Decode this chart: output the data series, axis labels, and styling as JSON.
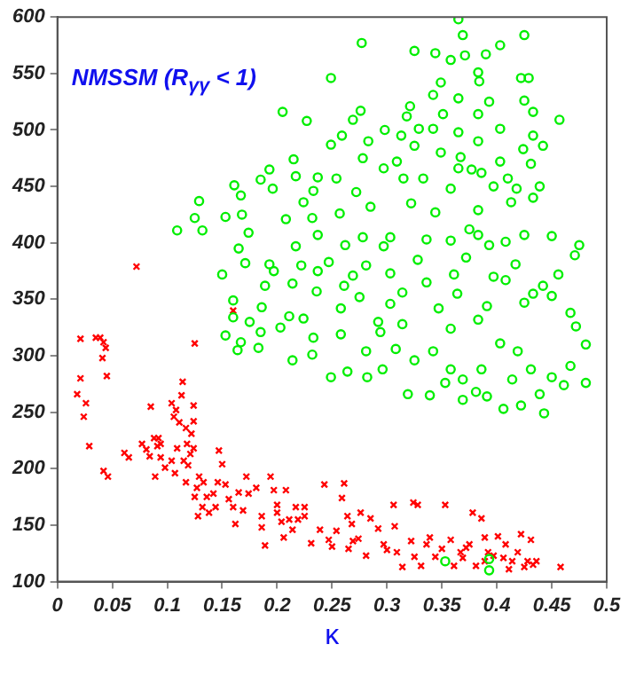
{
  "chart_data": {
    "type": "scatter",
    "title": "NMSSM (R$_{γγ}$ < 1)",
    "xlabel": "κ",
    "xlim": [
      0,
      0.5
    ],
    "xticks": [
      0,
      0.05,
      0.1,
      0.15,
      0.2,
      0.25,
      0.3,
      0.35,
      0.4,
      0.45,
      0.5
    ],
    "ylim": [
      100,
      600
    ],
    "yticks": [
      100,
      150,
      200,
      250,
      300,
      350,
      400,
      450,
      500,
      550,
      600
    ],
    "grid": false,
    "legend": false,
    "series": [
      {
        "color": "#00ee00",
        "marker": "circle",
        "x": [
          0.365,
          0.369,
          0.425,
          0.277,
          0.403,
          0.325,
          0.344,
          0.371,
          0.39,
          0.358,
          0.249,
          0.383,
          0.422,
          0.429,
          0.349,
          0.384,
          0.342,
          0.365,
          0.393,
          0.425,
          0.433,
          0.205,
          0.227,
          0.276,
          0.321,
          0.318,
          0.351,
          0.383,
          0.457,
          0.269,
          0.298,
          0.329,
          0.342,
          0.365,
          0.403,
          0.259,
          0.313,
          0.383,
          0.433,
          0.442,
          0.249,
          0.283,
          0.325,
          0.349,
          0.367,
          0.424,
          0.215,
          0.278,
          0.309,
          0.365,
          0.377,
          0.403,
          0.431,
          0.193,
          0.237,
          0.297,
          0.315,
          0.386,
          0.41,
          0.161,
          0.185,
          0.217,
          0.254,
          0.333,
          0.397,
          0.439,
          0.167,
          0.196,
          0.233,
          0.272,
          0.358,
          0.418,
          0.129,
          0.224,
          0.285,
          0.322,
          0.433,
          0.125,
          0.153,
          0.168,
          0.232,
          0.257,
          0.344,
          0.383,
          0.413,
          0.132,
          0.109,
          0.174,
          0.208,
          0.237,
          0.278,
          0.303,
          0.358,
          0.383,
          0.425,
          0.45,
          0.165,
          0.217,
          0.262,
          0.297,
          0.336,
          0.375,
          0.393,
          0.408,
          0.475,
          0.471,
          0.171,
          0.193,
          0.222,
          0.247,
          0.281,
          0.328,
          0.372,
          0.417,
          0.15,
          0.197,
          0.237,
          0.269,
          0.303,
          0.361,
          0.397,
          0.456,
          0.189,
          0.214,
          0.261,
          0.336,
          0.408,
          0.442,
          0.16,
          0.236,
          0.275,
          0.314,
          0.364,
          0.433,
          0.45,
          0.186,
          0.258,
          0.303,
          0.347,
          0.391,
          0.425,
          0.467,
          0.224,
          0.292,
          0.383,
          0.16,
          0.472,
          0.481,
          0.175,
          0.211,
          0.153,
          0.167,
          0.164,
          0.185,
          0.183,
          0.203,
          0.214,
          0.233,
          0.232,
          0.249,
          0.264,
          0.281,
          0.282,
          0.294,
          0.296,
          0.308,
          0.319,
          0.325,
          0.339,
          0.342,
          0.353,
          0.358,
          0.369,
          0.369,
          0.381,
          0.386,
          0.391,
          0.406,
          0.414,
          0.422,
          0.431,
          0.439,
          0.443,
          0.45,
          0.461,
          0.467,
          0.481,
          0.403,
          0.419,
          0.358,
          0.314,
          0.258,
          0.353,
          0.393,
          0.393
        ],
        "values": [
          598,
          584,
          584,
          577,
          575,
          570,
          568,
          566,
          567,
          562,
          546,
          551,
          546,
          546,
          542,
          543,
          531,
          528,
          525,
          526,
          516,
          516,
          508,
          517,
          521,
          512,
          514,
          514,
          509,
          509,
          500,
          501,
          501,
          498,
          501,
          495,
          495,
          490,
          495,
          486,
          487,
          490,
          486,
          480,
          476,
          483,
          474,
          475,
          472,
          466,
          465,
          472,
          470,
          465,
          458,
          466,
          457,
          462,
          457,
          451,
          456,
          459,
          457,
          457,
          450,
          450,
          442,
          448,
          446,
          445,
          448,
          448,
          437,
          436,
          432,
          435,
          440,
          422,
          423,
          425,
          422,
          426,
          427,
          429,
          436,
          411,
          411,
          409,
          421,
          407,
          405,
          405,
          402,
          407,
          407,
          406,
          395,
          397,
          398,
          397,
          403,
          412,
          398,
          401,
          398,
          389,
          382,
          381,
          380,
          383,
          380,
          385,
          387,
          381,
          372,
          375,
          375,
          371,
          373,
          372,
          370,
          372,
          362,
          364,
          362,
          365,
          367,
          362,
          349,
          357,
          352,
          356,
          355,
          355,
          353,
          343,
          342,
          346,
          342,
          344,
          347,
          338,
          333,
          330,
          332,
          334,
          326,
          310,
          330,
          335,
          318,
          312,
          305,
          321,
          307,
          325,
          296,
          316,
          301,
          281,
          286,
          304,
          281,
          321,
          288,
          306,
          266,
          296,
          265,
          304,
          276,
          288,
          261,
          279,
          268,
          288,
          264,
          253,
          279,
          256,
          288,
          266,
          249,
          281,
          274,
          291,
          276,
          311,
          304,
          324,
          328,
          319,
          118,
          120,
          110
        ]
      },
      {
        "color": "#ff0000",
        "marker": "cross",
        "x": [
          0.018,
          0.021,
          0.021,
          0.024,
          0.026,
          0.029,
          0.035,
          0.039,
          0.042,
          0.041,
          0.044,
          0.045,
          0.042,
          0.046,
          0.125,
          0.072,
          0.16,
          0.061,
          0.065,
          0.077,
          0.081,
          0.084,
          0.085,
          0.088,
          0.089,
          0.092,
          0.091,
          0.094,
          0.094,
          0.098,
          0.104,
          0.106,
          0.108,
          0.104,
          0.107,
          0.109,
          0.111,
          0.113,
          0.114,
          0.115,
          0.117,
          0.117,
          0.118,
          0.121,
          0.119,
          0.122,
          0.124,
          0.124,
          0.124,
          0.125,
          0.127,
          0.128,
          0.129,
          0.132,
          0.133,
          0.136,
          0.138,
          0.142,
          0.144,
          0.146,
          0.147,
          0.15,
          0.153,
          0.156,
          0.16,
          0.162,
          0.165,
          0.169,
          0.172,
          0.174,
          0.181,
          0.186,
          0.186,
          0.189,
          0.194,
          0.197,
          0.2,
          0.2,
          0.204,
          0.206,
          0.208,
          0.211,
          0.214,
          0.219,
          0.217,
          0.225,
          0.225,
          0.231,
          0.239,
          0.243,
          0.247,
          0.25,
          0.254,
          0.261,
          0.259,
          0.264,
          0.265,
          0.268,
          0.269,
          0.276,
          0.274,
          0.281,
          0.285,
          0.292,
          0.297,
          0.3,
          0.306,
          0.307,
          0.309,
          0.314,
          0.322,
          0.324,
          0.328,
          0.325,
          0.331,
          0.336,
          0.339,
          0.344,
          0.35,
          0.353,
          0.358,
          0.361,
          0.367,
          0.369,
          0.375,
          0.378,
          0.381,
          0.386,
          0.389,
          0.392,
          0.397,
          0.401,
          0.406,
          0.408,
          0.411,
          0.414,
          0.419,
          0.422,
          0.425,
          0.428,
          0.433,
          0.431,
          0.436,
          0.458,
          0.372,
          0.389
        ],
        "values": [
          266,
          280,
          315,
          246,
          258,
          220,
          316,
          316,
          312,
          298,
          307,
          282,
          198,
          193,
          311,
          379,
          340,
          214,
          210,
          222,
          217,
          211,
          255,
          227,
          193,
          227,
          220,
          222,
          210,
          201,
          258,
          246,
          252,
          207,
          196,
          218,
          241,
          265,
          277,
          207,
          236,
          188,
          222,
          213,
          203,
          231,
          218,
          256,
          242,
          175,
          183,
          158,
          193,
          166,
          188,
          175,
          161,
          178,
          166,
          188,
          216,
          204,
          186,
          173,
          166,
          151,
          179,
          163,
          193,
          178,
          183,
          158,
          148,
          132,
          193,
          181,
          168,
          161,
          153,
          139,
          181,
          155,
          146,
          155,
          166,
          158,
          166,
          134,
          146,
          186,
          137,
          131,
          145,
          187,
          174,
          158,
          129,
          151,
          136,
          161,
          138,
          123,
          156,
          147,
          133,
          128,
          168,
          149,
          126,
          113,
          136,
          170,
          168,
          122,
          114,
          133,
          139,
          122,
          129,
          168,
          137,
          114,
          126,
          121,
          133,
          161,
          114,
          156,
          139,
          126,
          123,
          140,
          121,
          133,
          111,
          118,
          126,
          142,
          113,
          118,
          115,
          137,
          118,
          113,
          130,
          118
        ]
      }
    ]
  }
}
